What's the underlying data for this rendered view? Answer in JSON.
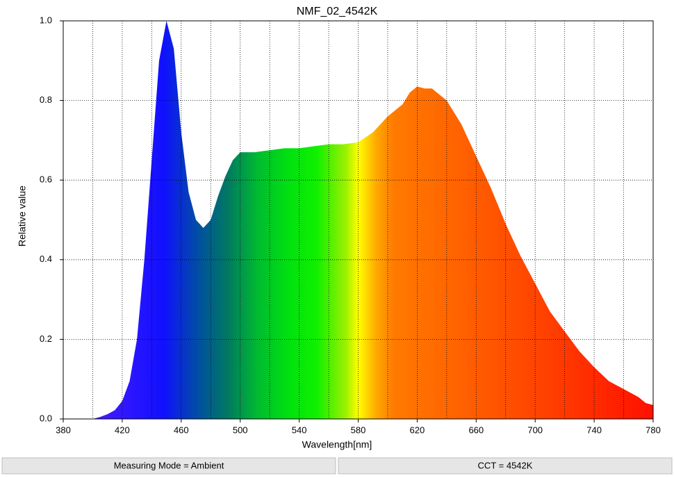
{
  "chart_data": {
    "type": "area",
    "title": "NMF_02_4542K",
    "x_label": "Wavelength[nm]",
    "y_label": "Relative value",
    "x": [
      400,
      405,
      410,
      415,
      420,
      425,
      430,
      435,
      440,
      445,
      450,
      455,
      460,
      465,
      470,
      475,
      480,
      485,
      490,
      495,
      500,
      505,
      510,
      520,
      530,
      540,
      550,
      560,
      570,
      580,
      590,
      600,
      610,
      615,
      620,
      625,
      630,
      640,
      650,
      660,
      670,
      680,
      690,
      700,
      710,
      720,
      730,
      740,
      750,
      760,
      770,
      775,
      780
    ],
    "values": [
      0,
      0.005,
      0.012,
      0.022,
      0.045,
      0.095,
      0.2,
      0.4,
      0.65,
      0.9,
      1.0,
      0.93,
      0.72,
      0.57,
      0.5,
      0.48,
      0.5,
      0.56,
      0.61,
      0.65,
      0.67,
      0.67,
      0.67,
      0.675,
      0.68,
      0.68,
      0.685,
      0.69,
      0.69,
      0.695,
      0.72,
      0.76,
      0.79,
      0.82,
      0.835,
      0.83,
      0.83,
      0.8,
      0.74,
      0.66,
      0.58,
      0.49,
      0.41,
      0.34,
      0.27,
      0.22,
      0.17,
      0.13,
      0.095,
      0.075,
      0.055,
      0.04,
      0.035
    ],
    "xlim": [
      380,
      780
    ],
    "ylim": [
      0,
      1
    ],
    "xticks": [
      380,
      420,
      460,
      500,
      540,
      580,
      620,
      660,
      700,
      740,
      780
    ],
    "yticks": [
      {
        "value": 0,
        "label": "0.0"
      },
      0.2,
      0.4,
      0.6,
      0.8,
      {
        "value": 1,
        "label": "1.0"
      }
    ],
    "grid": true
  },
  "status_bar": [
    "Measuring Mode = Ambient",
    "CCT = 4542K"
  ]
}
